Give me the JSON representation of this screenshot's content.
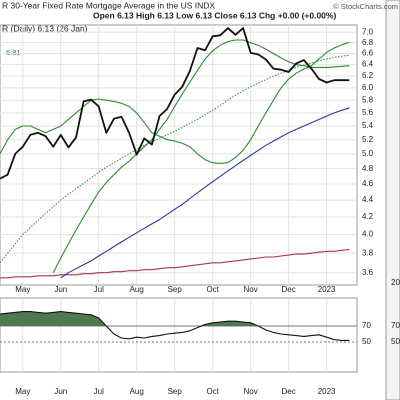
{
  "chart_data": [
    {
      "type": "line",
      "title": "R 30-Year Fixed Rate Mortgage Average in the US INDX",
      "source": "© StockCharts.com",
      "subtitle": "Open 6.13 High 6.13 Low 6.13 Close 6.13 Chg +0.00 (+0.00%)",
      "legend_label": "R (Daily) 6.13 (26 Jan)",
      "log_scale": true,
      "grid": true,
      "x": [
        0,
        1,
        2,
        3,
        4,
        5,
        6,
        7,
        8,
        9,
        10,
        11,
        12,
        13,
        14,
        15,
        16,
        17,
        18,
        19,
        20,
        21,
        22,
        23,
        24,
        25,
        26,
        27,
        28,
        29,
        30,
        31,
        32,
        33,
        34,
        35,
        36,
        37,
        38,
        39,
        40,
        41,
        42,
        43,
        44,
        45,
        46
      ],
      "xlim": [
        0,
        47
      ],
      "xticks": [
        {
          "value": 3,
          "label": "May"
        },
        {
          "value": 8,
          "label": "Jun"
        },
        {
          "value": 13,
          "label": "Jul"
        },
        {
          "value": 18,
          "label": "Aug"
        },
        {
          "value": 23,
          "label": "Sep"
        },
        {
          "value": 28,
          "label": "Oct"
        },
        {
          "value": 33,
          "label": "Nov"
        },
        {
          "value": 38,
          "label": "Dec"
        },
        {
          "value": 43,
          "label": "2023"
        }
      ],
      "ylim": [
        3.48,
        7.14
      ],
      "yticks": [
        {
          "value": 7,
          "label": "7.0"
        },
        6.8,
        6.6,
        6.4,
        6.2,
        {
          "value": 6,
          "label": "6.0"
        },
        5.8,
        5.6,
        5.4,
        5.2,
        {
          "value": 5,
          "label": "5.0"
        },
        4.8,
        4.6,
        4.4,
        4.2,
        {
          "value": 4,
          "label": "4.0"
        },
        3.8,
        3.6
      ],
      "series": [
        {
          "color": "#b03050",
          "style": "solid",
          "values": [
            3.55,
            3.55,
            3.56,
            3.56,
            3.56,
            3.57,
            3.57,
            3.57,
            3.58,
            3.58,
            3.58,
            3.59,
            3.59,
            3.6,
            3.6,
            3.61,
            3.61,
            3.62,
            3.62,
            3.63,
            3.63,
            3.64,
            3.65,
            3.65,
            3.66,
            3.67,
            3.68,
            3.69,
            3.7,
            3.7,
            3.71,
            3.72,
            3.73,
            3.74,
            3.75,
            3.76,
            3.76,
            3.77,
            3.78,
            3.79,
            3.79,
            3.8,
            3.81,
            3.82,
            3.82,
            3.83,
            3.84
          ]
        },
        {
          "color": "#2e8b2e",
          "style": "solid",
          "values": [
            5.0,
            5.2,
            5.35,
            5.4,
            5.4,
            5.35,
            5.3,
            5.35,
            5.4,
            5.5,
            5.6,
            5.7,
            5.8,
            5.82,
            5.8,
            5.78,
            5.75,
            5.7,
            5.6,
            5.45,
            5.3,
            5.25,
            5.2,
            5.18,
            5.15,
            5.1,
            5.0,
            4.92,
            4.88,
            4.87,
            4.88,
            4.95,
            5.05,
            5.2,
            5.4,
            5.6,
            5.8,
            6.0,
            6.15,
            6.25,
            6.32,
            6.38,
            6.5,
            6.62,
            6.7,
            6.76,
            6.81
          ]
        },
        {
          "color": "#2e8b2e",
          "style": "solid",
          "values": [
            null,
            null,
            null,
            null,
            null,
            null,
            null,
            3.6,
            3.75,
            3.9,
            4.05,
            4.2,
            4.35,
            4.5,
            4.62,
            4.72,
            4.82,
            4.9,
            5.0,
            5.1,
            5.2,
            5.35,
            5.5,
            5.7,
            5.9,
            6.1,
            6.3,
            6.5,
            6.65,
            6.75,
            6.82,
            6.85,
            6.85,
            6.8,
            6.75,
            6.68,
            6.6,
            6.52,
            6.45,
            6.4,
            6.38,
            6.35,
            6.35,
            6.35,
            6.36,
            6.37,
            6.38
          ]
        },
        {
          "color": "#2e8b2e",
          "style": "dotted",
          "values": [
            3.7,
            3.8,
            3.9,
            4.0,
            4.08,
            4.16,
            4.24,
            4.32,
            4.4,
            4.47,
            4.54,
            4.61,
            4.68,
            4.75,
            4.82,
            4.88,
            4.94,
            5.0,
            5.06,
            5.12,
            5.17,
            5.22,
            5.27,
            5.32,
            5.38,
            5.44,
            5.5,
            5.57,
            5.64,
            5.72,
            5.8,
            5.88,
            5.95,
            6.02,
            6.08,
            6.14,
            6.2,
            6.25,
            6.3,
            6.35,
            6.39,
            6.43,
            6.47,
            6.5,
            6.53,
            6.55,
            6.57
          ]
        },
        {
          "color": "#33339a",
          "style": "solid",
          "values": [
            null,
            null,
            null,
            null,
            null,
            null,
            null,
            null,
            3.55,
            3.6,
            3.64,
            3.68,
            3.72,
            3.77,
            3.82,
            3.87,
            3.92,
            3.97,
            4.02,
            4.07,
            4.12,
            4.17,
            4.23,
            4.29,
            4.35,
            4.42,
            4.49,
            4.56,
            4.63,
            4.7,
            4.77,
            4.84,
            4.91,
            4.98,
            5.05,
            5.12,
            5.18,
            5.24,
            5.3,
            5.35,
            5.4,
            5.45,
            5.5,
            5.55,
            5.6,
            5.64,
            5.68
          ]
        },
        {
          "color": "#111111",
          "style": "bold",
          "values": [
            4.67,
            4.72,
            5.0,
            5.1,
            5.27,
            5.3,
            5.25,
            5.1,
            5.27,
            5.09,
            5.23,
            5.78,
            5.81,
            5.7,
            5.3,
            5.51,
            5.54,
            5.3,
            4.99,
            5.22,
            5.13,
            5.55,
            5.66,
            5.89,
            6.02,
            6.29,
            6.7,
            6.66,
            6.92,
            6.94,
            7.08,
            6.95,
            7.08,
            6.61,
            6.58,
            6.49,
            6.33,
            6.31,
            6.27,
            6.42,
            6.48,
            6.33,
            6.15,
            6.09,
            6.13,
            6.13,
            6.13
          ]
        }
      ],
      "side_panel_labels": [
        "20",
        "70",
        "50"
      ]
    },
    {
      "type": "line",
      "x": [
        0,
        1,
        2,
        3,
        4,
        5,
        6,
        7,
        8,
        9,
        10,
        11,
        12,
        13,
        14,
        15,
        16,
        17,
        18,
        19,
        20,
        21,
        22,
        23,
        24,
        25,
        26,
        27,
        28,
        29,
        30,
        31,
        32,
        33,
        34,
        35,
        36,
        37,
        38,
        39,
        40,
        41,
        42,
        43,
        44,
        45,
        46
      ],
      "xlim": [
        0,
        47
      ],
      "xticks": [
        {
          "value": 3,
          "label": "May"
        },
        {
          "value": 8,
          "label": "Jun"
        },
        {
          "value": 13,
          "label": "Jul"
        },
        {
          "value": 18,
          "label": "Aug"
        },
        {
          "value": 23,
          "label": "Sep"
        },
        {
          "value": 28,
          "label": "Oct"
        },
        {
          "value": 33,
          "label": "Nov"
        },
        {
          "value": 38,
          "label": "Dec"
        },
        {
          "value": 43,
          "label": "2023"
        }
      ],
      "ylim": [
        12.5,
        105
      ],
      "yticks": [
        70,
        50
      ],
      "fill_above": 70,
      "fill_color": "#4f7a4f",
      "series": [
        {
          "color": "#111111",
          "values": [
            85,
            86,
            87,
            88,
            88,
            87,
            86,
            87,
            88,
            87,
            86,
            85,
            84,
            80,
            70,
            60,
            55,
            54,
            56,
            55,
            57,
            58,
            60,
            61,
            62,
            64,
            68,
            72,
            74,
            75,
            76,
            76,
            75,
            74,
            70,
            65,
            62,
            60,
            59,
            58,
            57,
            58,
            59,
            56,
            53,
            52,
            52
          ]
        }
      ]
    }
  ]
}
